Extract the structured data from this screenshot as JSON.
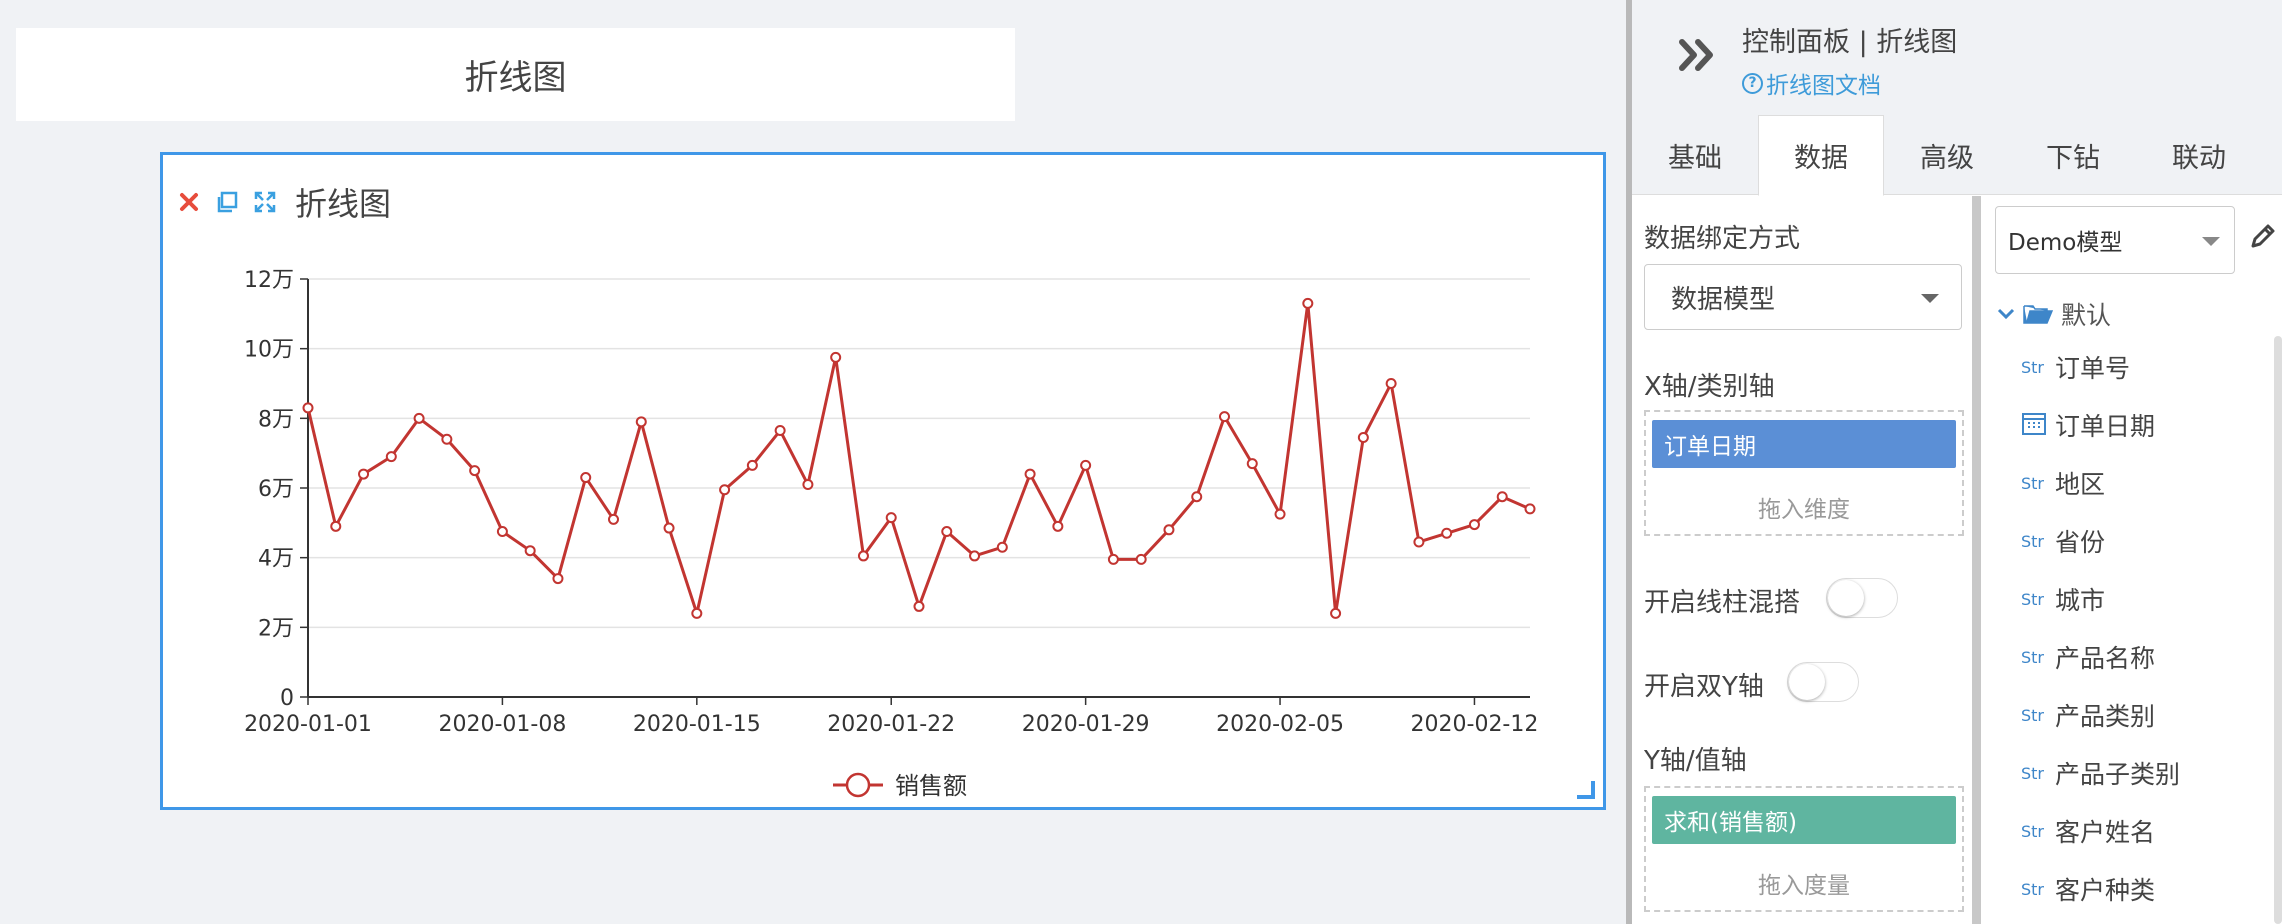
{
  "canvas": {
    "title_widget_text": "折线图",
    "chart_widget": {
      "title": "折线图",
      "toolbar_icons": [
        "close-icon",
        "copy-icon",
        "expand-icon"
      ],
      "colors": {
        "selection_border": "#3f97e8",
        "close": "#e74c3c",
        "icon": "#3aa0e0"
      }
    }
  },
  "chart_data": {
    "type": "line",
    "title": "",
    "xlabel": "",
    "ylabel": "",
    "x": [
      "2020-01-01",
      "2020-01-02",
      "2020-01-03",
      "2020-01-04",
      "2020-01-05",
      "2020-01-06",
      "2020-01-07",
      "2020-01-08",
      "2020-01-09",
      "2020-01-10",
      "2020-01-11",
      "2020-01-12",
      "2020-01-13",
      "2020-01-14",
      "2020-01-15",
      "2020-01-16",
      "2020-01-17",
      "2020-01-18",
      "2020-01-19",
      "2020-01-20",
      "2020-01-21",
      "2020-01-22",
      "2020-01-23",
      "2020-01-24",
      "2020-01-25",
      "2020-01-26",
      "2020-01-27",
      "2020-01-28",
      "2020-01-29",
      "2020-01-30",
      "2020-01-31",
      "2020-02-01",
      "2020-02-02",
      "2020-02-03",
      "2020-02-04",
      "2020-02-05",
      "2020-02-06",
      "2020-02-07",
      "2020-02-08",
      "2020-02-09",
      "2020-02-10",
      "2020-02-11",
      "2020-02-12",
      "2020-02-13",
      "2020-02-14"
    ],
    "x_tick_labels": [
      "2020-01-01",
      "2020-01-08",
      "2020-01-15",
      "2020-01-22",
      "2020-01-29",
      "2020-02-05",
      "2020-02-12"
    ],
    "y_tick_labels": [
      "0",
      "2万",
      "4万",
      "6万",
      "8万",
      "10万",
      "12万"
    ],
    "ylim": [
      0,
      120000
    ],
    "grid": true,
    "legend_position": "bottom-center",
    "series": [
      {
        "name": "销售额",
        "color": "#c23531",
        "values": [
          83000,
          49000,
          64000,
          69000,
          80000,
          74000,
          65000,
          47500,
          42000,
          34000,
          63000,
          51000,
          79000,
          48500,
          24000,
          59500,
          66500,
          76500,
          61000,
          97500,
          40500,
          51500,
          26000,
          47500,
          40500,
          43000,
          64000,
          49000,
          66500,
          39500,
          39500,
          48000,
          57500,
          80500,
          67000,
          52500,
          113000,
          24000,
          74500,
          90000,
          44500,
          47000,
          49500,
          57500,
          54000
        ]
      }
    ]
  },
  "panel": {
    "title": "控制面板 | 折线图",
    "doc_link": "折线图文档",
    "tabs": [
      "基础",
      "数据",
      "高级",
      "下钻",
      "联动"
    ],
    "active_tab": "数据",
    "data": {
      "binding_label": "数据绑定方式",
      "binding_value": "数据模型",
      "x_axis_label": "X轴/类别轴",
      "x_axis_field": "订单日期",
      "x_axis_hint": "拖入维度",
      "combo_label": "开启线柱混搭",
      "combo_on": false,
      "dual_y_label": "开启双Y轴",
      "dual_y_on": false,
      "y_axis_label": "Y轴/值轴",
      "y_axis_field": "求和(销售额)",
      "y_axis_hint": "拖入度量"
    },
    "model": {
      "selected": "Demo模型",
      "folder": "默认",
      "type_tag": "Str",
      "fields": [
        {
          "type": "Str",
          "name": "订单号"
        },
        {
          "type": "date",
          "name": "订单日期"
        },
        {
          "type": "Str",
          "name": "地区"
        },
        {
          "type": "Str",
          "name": "省份"
        },
        {
          "type": "Str",
          "name": "城市"
        },
        {
          "type": "Str",
          "name": "产品名称"
        },
        {
          "type": "Str",
          "name": "产品类别"
        },
        {
          "type": "Str",
          "name": "产品子类别"
        },
        {
          "type": "Str",
          "name": "客户姓名"
        },
        {
          "type": "Str",
          "name": "客户种类"
        }
      ]
    }
  }
}
